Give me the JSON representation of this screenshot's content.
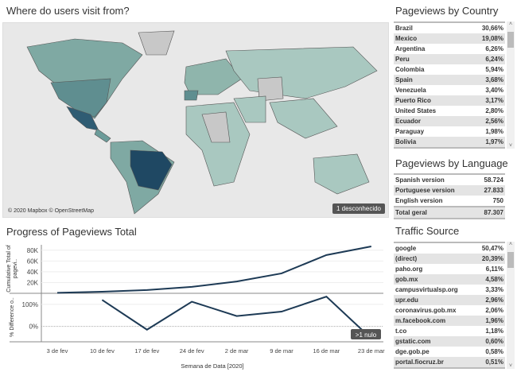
{
  "map": {
    "title": "Where do users visit from?",
    "attribution": "© 2020 Mapbox © OpenStreetMap",
    "unknown_badge": "1 desconhecido",
    "colors": {
      "low": "#a9c8c0",
      "mid": "#6c9c9a",
      "high": "#1f4863",
      "nodata": "#c8c8c8",
      "water": "#e8e8e8"
    }
  },
  "country": {
    "title": "Pageviews by Country",
    "rows": [
      {
        "name": "Brazil",
        "value": "30,66%"
      },
      {
        "name": "Mexico",
        "value": "19,08%"
      },
      {
        "name": "Argentina",
        "value": "6,26%"
      },
      {
        "name": "Peru",
        "value": "6,24%"
      },
      {
        "name": "Colombia",
        "value": "5,94%"
      },
      {
        "name": "Spain",
        "value": "3,68%"
      },
      {
        "name": "Venezuela",
        "value": "3,40%"
      },
      {
        "name": "Puerto Rico",
        "value": "3,17%"
      },
      {
        "name": "United States",
        "value": "2,80%"
      },
      {
        "name": "Ecuador",
        "value": "2,56%"
      },
      {
        "name": "Paraguay",
        "value": "1,98%"
      },
      {
        "name": "Bolivia",
        "value": "1,97%"
      }
    ]
  },
  "language": {
    "title": "Pageviews by Language",
    "rows": [
      {
        "name": "Spanish version",
        "value": "58.724"
      },
      {
        "name": "Portuguese version",
        "value": "27.833"
      },
      {
        "name": "English version",
        "value": "750"
      }
    ],
    "total": {
      "name": "Total geral",
      "value": "87.307"
    }
  },
  "traffic": {
    "title": "Traffic Source",
    "rows": [
      {
        "name": "google",
        "value": "50,47%"
      },
      {
        "name": "(direct)",
        "value": "20,39%"
      },
      {
        "name": "paho.org",
        "value": "6,11%"
      },
      {
        "name": "gob.mx",
        "value": "4,58%"
      },
      {
        "name": "campusvirtualsp.org",
        "value": "3,33%"
      },
      {
        "name": "upr.edu",
        "value": "2,96%"
      },
      {
        "name": "coronavirus.gob.mx",
        "value": "2,06%"
      },
      {
        "name": "m.facebook.com",
        "value": "1,96%"
      },
      {
        "name": "t.co",
        "value": "1,18%"
      },
      {
        "name": "gstatic.com",
        "value": "0,60%"
      },
      {
        "name": "dge.gob.pe",
        "value": "0,58%"
      },
      {
        "name": "portal.fiocruz.br",
        "value": "0,51%"
      }
    ]
  },
  "chart_data": {
    "type": "line",
    "title": "Progress of Pageviews Total",
    "xlabel": "Semana de Data [2020]",
    "categories": [
      "3 de fev",
      "10 de fev",
      "17 de fev",
      "24 de fev",
      "2 de mar",
      "9 de mar",
      "16 de mar",
      "23 de mar"
    ],
    "color": "#1d3a55",
    "null_badge": ">1 nulo",
    "panels": [
      {
        "ylabel": "Cumulative Total of pagevi..",
        "yticks": [
          "20K",
          "40K",
          "60K",
          "80K"
        ],
        "ylim": [
          0,
          90000
        ],
        "values": [
          1000,
          3000,
          6000,
          12000,
          22000,
          37000,
          71000,
          87000
        ]
      },
      {
        "ylabel": "% Difference o..",
        "yticks": [
          "0%",
          "100%"
        ],
        "ylim": [
          -70,
          150
        ],
        "values": [
          null,
          120,
          -15,
          112,
          47,
          67,
          135,
          -55
        ]
      }
    ]
  }
}
